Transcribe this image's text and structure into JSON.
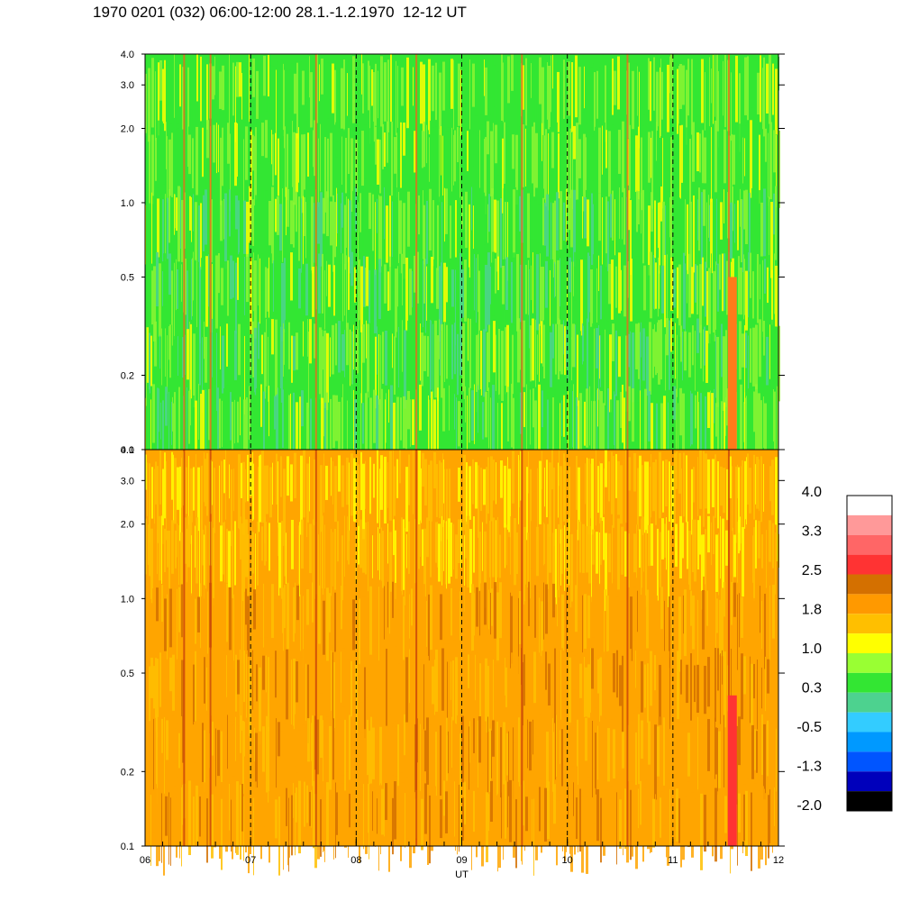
{
  "title": "1970 0201 (032) 06:00-12:00 28.1.-1.2.1970  12-12 UT",
  "chart_data": {
    "type": "heatmap",
    "panels": [
      {
        "id": "top",
        "y_scale": "log",
        "ylim": [
          0.1,
          4.0
        ],
        "y_ticks": [
          {
            "value": 0.1,
            "label": "0.1"
          },
          {
            "value": 0.2,
            "label": "0.2"
          },
          {
            "value": 0.5,
            "label": "0.5"
          },
          {
            "value": 1.0,
            "label": "1.0"
          },
          {
            "value": 2.0,
            "label": "2.0"
          },
          {
            "value": 3.0,
            "label": "3.0"
          },
          {
            "value": 4.0,
            "label": "4.0"
          }
        ],
        "typical_value_range": [
          0.0,
          1.2
        ],
        "dominant_colors": [
          "#33e633",
          "#8cf533",
          "#4dd28f",
          "#ffff00"
        ]
      },
      {
        "id": "bottom",
        "y_scale": "log",
        "ylim": [
          0.1,
          4.0
        ],
        "y_ticks": [
          {
            "value": 0.1,
            "label": "0.1"
          },
          {
            "value": 0.2,
            "label": "0.2"
          },
          {
            "value": 0.5,
            "label": "0.5"
          },
          {
            "value": 1.0,
            "label": "1.0"
          },
          {
            "value": 2.0,
            "label": "2.0"
          },
          {
            "value": 3.0,
            "label": "3.0"
          },
          {
            "value": 4.0,
            "label": "4.0"
          }
        ],
        "typical_value_range": [
          1.0,
          2.2
        ],
        "dominant_colors": [
          "#ffa500",
          "#ffbf00",
          "#ffff00",
          "#d47000"
        ]
      }
    ],
    "x": {
      "label": "UT",
      "range": [
        6,
        12
      ],
      "ticks": [
        {
          "value": 6,
          "label": "06"
        },
        {
          "value": 7,
          "label": "07"
        },
        {
          "value": 8,
          "label": "08"
        },
        {
          "value": 9,
          "label": "09"
        },
        {
          "value": 10,
          "label": "10"
        },
        {
          "value": 11,
          "label": "11"
        },
        {
          "value": 12,
          "label": "12"
        }
      ],
      "dashed_gridlines_at": [
        7,
        8,
        9,
        10,
        11
      ]
    },
    "colorbar": {
      "range": [
        -2.0,
        4.0
      ],
      "colors": [
        "#ffffff",
        "#ff9999",
        "#ff6666",
        "#ff3333",
        "#d47000",
        "#ff9900",
        "#ffbf00",
        "#ffff00",
        "#99ff33",
        "#33e633",
        "#4dd28f",
        "#33ccff",
        "#0099ff",
        "#0055ff",
        "#0000bb",
        "#000000"
      ],
      "labels": [
        "4.0",
        "3.3",
        "2.5",
        "1.8",
        "1.0",
        "0.3",
        "-0.5",
        "-1.3",
        "-2.0"
      ]
    },
    "vertical_features_hours": [
      6.37,
      6.62,
      7.62,
      8.57,
      9.57,
      10.57,
      11.53
    ]
  }
}
